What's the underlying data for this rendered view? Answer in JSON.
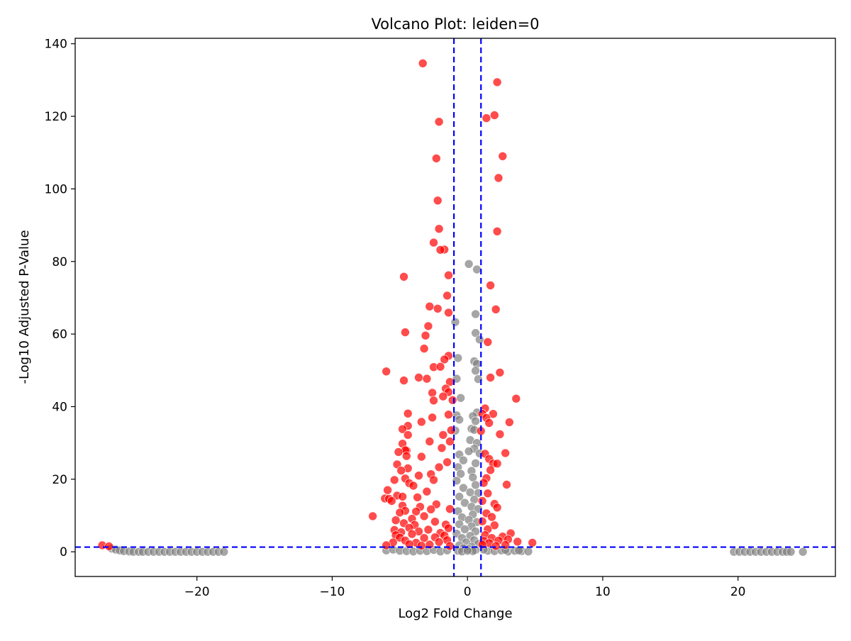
{
  "chart_data": {
    "type": "scatter",
    "title": "Volcano Plot: leiden=0",
    "xlabel": "Log2 Fold Change",
    "ylabel": "-Log10 Adjusted P-Value",
    "xlim": [
      -29,
      27.2
    ],
    "ylim": [
      -6.8,
      141.5
    ],
    "xticks": [
      -20,
      -10,
      0,
      10,
      20
    ],
    "xtick_labels": [
      "−20",
      "−10",
      "0",
      "10",
      "20"
    ],
    "yticks": [
      0,
      20,
      40,
      60,
      80,
      100,
      120,
      140
    ],
    "ytick_labels": [
      "0",
      "20",
      "40",
      "60",
      "80",
      "100",
      "120",
      "140"
    ],
    "grid": false,
    "legend": "none",
    "thresholds": {
      "log2fc": [
        -1,
        1
      ],
      "neg_log10_padj": 1.3,
      "line_color": "#0000ff"
    },
    "series": [
      {
        "color": "#ff0000",
        "points": [
          [
            -3.3,
            134.6
          ],
          [
            2.2,
            129.4
          ],
          [
            -2.1,
            118.5
          ],
          [
            2.0,
            120.3
          ],
          [
            1.4,
            119.5
          ],
          [
            2.6,
            109.0
          ],
          [
            -2.3,
            108.4
          ],
          [
            2.3,
            103.0
          ],
          [
            -2.2,
            96.8
          ],
          [
            -2.1,
            89.0
          ],
          [
            2.2,
            88.3
          ],
          [
            -1.7,
            83.3
          ],
          [
            -2.5,
            85.2
          ],
          [
            -2.0,
            83.2
          ],
          [
            -4.7,
            75.8
          ],
          [
            -1.4,
            76.2
          ],
          [
            1.7,
            73.4
          ],
          [
            -1.5,
            70.6
          ],
          [
            -2.8,
            67.6
          ],
          [
            -2.2,
            67.0
          ],
          [
            2.1,
            66.8
          ],
          [
            -1.4,
            65.9
          ],
          [
            -2.9,
            62.2
          ],
          [
            -4.6,
            60.5
          ],
          [
            -3.1,
            59.6
          ],
          [
            1.5,
            57.8
          ],
          [
            -3.2,
            56.0
          ],
          [
            -1.4,
            54.0
          ],
          [
            -1.7,
            53.0
          ],
          [
            -2.5,
            50.9
          ],
          [
            -2.0,
            51.0
          ],
          [
            2.4,
            49.4
          ],
          [
            -6.0,
            49.7
          ],
          [
            1.7,
            48.0
          ],
          [
            -3.6,
            48.0
          ],
          [
            -3.0,
            47.7
          ],
          [
            -4.7,
            47.2
          ],
          [
            -1.3,
            46.8
          ],
          [
            -1.6,
            45.0
          ],
          [
            -1.4,
            44.0
          ],
          [
            -2.6,
            43.8
          ],
          [
            -1.8,
            42.8
          ],
          [
            -2.5,
            41.7
          ],
          [
            3.6,
            42.2
          ],
          [
            -1.1,
            41.8
          ],
          [
            1.3,
            39.5
          ],
          [
            1.1,
            38.0
          ],
          [
            1.9,
            38.0
          ],
          [
            -4.4,
            38.1
          ],
          [
            -1.4,
            37.8
          ],
          [
            1.4,
            36.9
          ],
          [
            -2.6,
            37.0
          ],
          [
            -3.4,
            35.8
          ],
          [
            3.1,
            35.7
          ],
          [
            1.6,
            35.5
          ],
          [
            -4.4,
            34.7
          ],
          [
            -4.8,
            33.8
          ],
          [
            -1.2,
            33.5
          ],
          [
            1.0,
            33.3
          ],
          [
            2.4,
            32.4
          ],
          [
            -1.8,
            32.2
          ],
          [
            -4.4,
            32.2
          ],
          [
            -2.8,
            30.4
          ],
          [
            -1.3,
            30.4
          ],
          [
            -4.8,
            29.8
          ],
          [
            -1.9,
            28.6
          ],
          [
            -4.5,
            27.9
          ],
          [
            -4.6,
            28.0
          ],
          [
            -5.1,
            27.5
          ],
          [
            2.8,
            27.2
          ],
          [
            1.3,
            27.0
          ],
          [
            -3.4,
            26.2
          ],
          [
            -4.5,
            26.4
          ],
          [
            1.6,
            25.6
          ],
          [
            -1.5,
            24.7
          ],
          [
            1.9,
            24.3
          ],
          [
            2.2,
            24.3
          ],
          [
            -5.2,
            24.1
          ],
          [
            -2.1,
            23.3
          ],
          [
            -4.4,
            23.0
          ],
          [
            -4.9,
            22.4
          ],
          [
            1.7,
            22.5
          ],
          [
            -2.7,
            21.4
          ],
          [
            -3.6,
            21.0
          ],
          [
            1.4,
            20.3
          ],
          [
            -4.6,
            20.2
          ],
          [
            -2.5,
            19.8
          ],
          [
            -5.4,
            19.8
          ],
          [
            1.2,
            19.0
          ],
          [
            -4.3,
            18.9
          ],
          [
            2.9,
            18.5
          ],
          [
            -4.0,
            18.2
          ],
          [
            -5.9,
            17.0
          ],
          [
            -3.0,
            16.6
          ],
          [
            1.5,
            16.1
          ],
          [
            -5.2,
            15.5
          ],
          [
            -4.8,
            15.2
          ],
          [
            -3.7,
            15.0
          ],
          [
            -6.1,
            14.7
          ],
          [
            -5.8,
            14.6
          ],
          [
            -5.6,
            14.0
          ],
          [
            1.1,
            14.0
          ],
          [
            -2.3,
            13.1
          ],
          [
            2.0,
            13.2
          ],
          [
            -4.8,
            12.7
          ],
          [
            -3.5,
            12.4
          ],
          [
            -2.7,
            11.7
          ],
          [
            -1.3,
            11.8
          ],
          [
            2.2,
            12.2
          ],
          [
            -4.6,
            11.3
          ],
          [
            -3.8,
            11.1
          ],
          [
            -5.0,
            10.8
          ],
          [
            1.4,
            10.6
          ],
          [
            -7.0,
            9.8
          ],
          [
            -3.2,
            9.8
          ],
          [
            1.8,
            9.6
          ],
          [
            -4.1,
            9.1
          ],
          [
            -5.3,
            8.7
          ],
          [
            -2.4,
            8.3
          ],
          [
            1.1,
            8.4
          ],
          [
            -4.7,
            7.9
          ],
          [
            -3.9,
            7.4
          ],
          [
            -1.6,
            7.5
          ],
          [
            2.0,
            7.3
          ],
          [
            -5.4,
            6.0
          ],
          [
            -4.3,
            6.6
          ],
          [
            -2.9,
            6.1
          ],
          [
            -1.4,
            6.5
          ],
          [
            1.5,
            6.2
          ],
          [
            -4.9,
            5.4
          ],
          [
            -3.6,
            5.6
          ],
          [
            -2.0,
            5.2
          ],
          [
            3.2,
            5.1
          ],
          [
            -5.3,
            4.6
          ],
          [
            -4.1,
            4.9
          ],
          [
            -1.7,
            4.5
          ],
          [
            1.3,
            4.6
          ],
          [
            2.6,
            4.2
          ],
          [
            -5.0,
            3.9
          ],
          [
            -3.2,
            3.8
          ],
          [
            -2.4,
            4.0
          ],
          [
            1.8,
            3.8
          ],
          [
            3.0,
            3.4
          ],
          [
            -4.6,
            3.1
          ],
          [
            -1.5,
            3.2
          ],
          [
            1.2,
            3.0
          ],
          [
            2.3,
            3.1
          ],
          [
            3.7,
            2.8
          ],
          [
            -5.5,
            2.6
          ],
          [
            -3.8,
            2.5
          ],
          [
            -2.1,
            2.7
          ],
          [
            1.6,
            2.4
          ],
          [
            4.8,
            2.5
          ],
          [
            -4.3,
            2.1
          ],
          [
            -6.0,
            1.8
          ],
          [
            -2.8,
            2.0
          ],
          [
            1.1,
            2.0
          ],
          [
            2.8,
            1.9
          ],
          [
            -3.4,
            1.7
          ],
          [
            -1.3,
            1.6
          ],
          [
            2.1,
            1.6
          ],
          [
            -27.0,
            1.8
          ],
          [
            -26.5,
            1.5
          ]
        ]
      },
      {
        "color": "#808080",
        "points": [
          [
            0.1,
            79.3
          ],
          [
            0.7,
            77.8
          ],
          [
            0.6,
            65.5
          ],
          [
            -0.9,
            63.3
          ],
          [
            0.6,
            60.3
          ],
          [
            0.9,
            58.5
          ],
          [
            -0.7,
            53.4
          ],
          [
            0.5,
            52.5
          ],
          [
            0.7,
            51.8
          ],
          [
            0.6,
            49.9
          ],
          [
            -0.8,
            47.7
          ],
          [
            0.8,
            47.6
          ],
          [
            -0.5,
            42.4
          ],
          [
            0.7,
            38.4
          ],
          [
            0.4,
            37.4
          ],
          [
            -0.8,
            37.6
          ],
          [
            -0.6,
            36.4
          ],
          [
            0.6,
            36.0
          ],
          [
            0.3,
            33.9
          ],
          [
            0.5,
            33.6
          ],
          [
            -0.9,
            33.4
          ],
          [
            0.2,
            30.8
          ],
          [
            0.7,
            30.0
          ],
          [
            0.5,
            28.4
          ],
          [
            0.1,
            27.7
          ],
          [
            -0.6,
            26.8
          ],
          [
            0.9,
            27.1
          ],
          [
            -0.3,
            25.2
          ],
          [
            0.6,
            24.4
          ],
          [
            -0.7,
            23.3
          ],
          [
            0.3,
            22.3
          ],
          [
            -0.5,
            21.5
          ],
          [
            0.4,
            20.5
          ],
          [
            -0.8,
            19.6
          ],
          [
            0.6,
            18.4
          ],
          [
            -0.3,
            17.6
          ],
          [
            0.2,
            16.4
          ],
          [
            0.8,
            16.2
          ],
          [
            -0.6,
            15.2
          ],
          [
            0.5,
            14.4
          ],
          [
            -0.2,
            13.5
          ],
          [
            0.3,
            12.4
          ],
          [
            0.8,
            11.8
          ],
          [
            -0.7,
            11.2
          ],
          [
            0.4,
            10.3
          ],
          [
            -0.4,
            9.5
          ],
          [
            0.1,
            8.8
          ],
          [
            0.7,
            8.2
          ],
          [
            -0.6,
            7.6
          ],
          [
            0.3,
            7.0
          ],
          [
            -0.2,
            6.2
          ],
          [
            0.6,
            5.6
          ],
          [
            -0.8,
            5.0
          ],
          [
            0.2,
            4.4
          ],
          [
            -0.4,
            3.8
          ],
          [
            0.5,
            3.2
          ],
          [
            -0.1,
            2.6
          ],
          [
            0.8,
            2.2
          ],
          [
            -0.6,
            1.8
          ],
          [
            0.3,
            1.4
          ],
          [
            -0.3,
            1.0
          ],
          [
            0.1,
            0.7
          ],
          [
            0.6,
            0.5
          ],
          [
            -0.7,
            0.3
          ],
          [
            0.4,
            0.2
          ],
          [
            -0.4,
            0.1
          ],
          [
            0.0,
            0.3
          ],
          [
            -6.0,
            0.4
          ],
          [
            -5.5,
            0.6
          ],
          [
            -5.0,
            0.3
          ],
          [
            -4.5,
            0.2
          ],
          [
            -4.0,
            0.1
          ],
          [
            -3.5,
            0.3
          ],
          [
            -3.0,
            0.2
          ],
          [
            -2.5,
            0.5
          ],
          [
            -2.0,
            0.1
          ],
          [
            -1.5,
            0.4
          ],
          [
            1.5,
            0.3
          ],
          [
            2.0,
            0.2
          ],
          [
            2.5,
            0.4
          ],
          [
            3.0,
            0.1
          ],
          [
            3.5,
            0.3
          ],
          [
            4.0,
            0.2
          ],
          [
            4.5,
            0.1
          ],
          [
            1.2,
            0.6
          ],
          [
            2.8,
            0.5
          ],
          [
            3.8,
            0.4
          ],
          [
            -26.3,
            0.9
          ],
          [
            -26.0,
            0.6
          ],
          [
            -25.7,
            0.4
          ],
          [
            -25.4,
            0.2
          ],
          [
            -25.0,
            0.1
          ],
          [
            -24.7,
            0.0
          ],
          [
            -24.3,
            0.0
          ],
          [
            -24.0,
            0.0
          ],
          [
            -23.6,
            0.0
          ],
          [
            -23.2,
            0.0
          ],
          [
            -22.8,
            0.0
          ],
          [
            -22.4,
            0.0
          ],
          [
            -22.0,
            0.0
          ],
          [
            -21.6,
            0.0
          ],
          [
            -21.2,
            0.0
          ],
          [
            -20.8,
            0.0
          ],
          [
            -20.4,
            0.0
          ],
          [
            -20.0,
            0.0
          ],
          [
            -19.6,
            0.0
          ],
          [
            -19.2,
            0.0
          ],
          [
            -18.8,
            0.0
          ],
          [
            -18.4,
            0.0
          ],
          [
            -18.0,
            0.0
          ],
          [
            19.7,
            0.0
          ],
          [
            20.1,
            0.0
          ],
          [
            20.5,
            0.0
          ],
          [
            20.9,
            0.0
          ],
          [
            21.3,
            0.0
          ],
          [
            21.7,
            0.0
          ],
          [
            22.1,
            0.0
          ],
          [
            22.5,
            0.0
          ],
          [
            22.9,
            0.0
          ],
          [
            23.3,
            0.0
          ],
          [
            23.6,
            0.0
          ],
          [
            23.9,
            0.0
          ],
          [
            24.8,
            0.0
          ]
        ]
      }
    ]
  }
}
